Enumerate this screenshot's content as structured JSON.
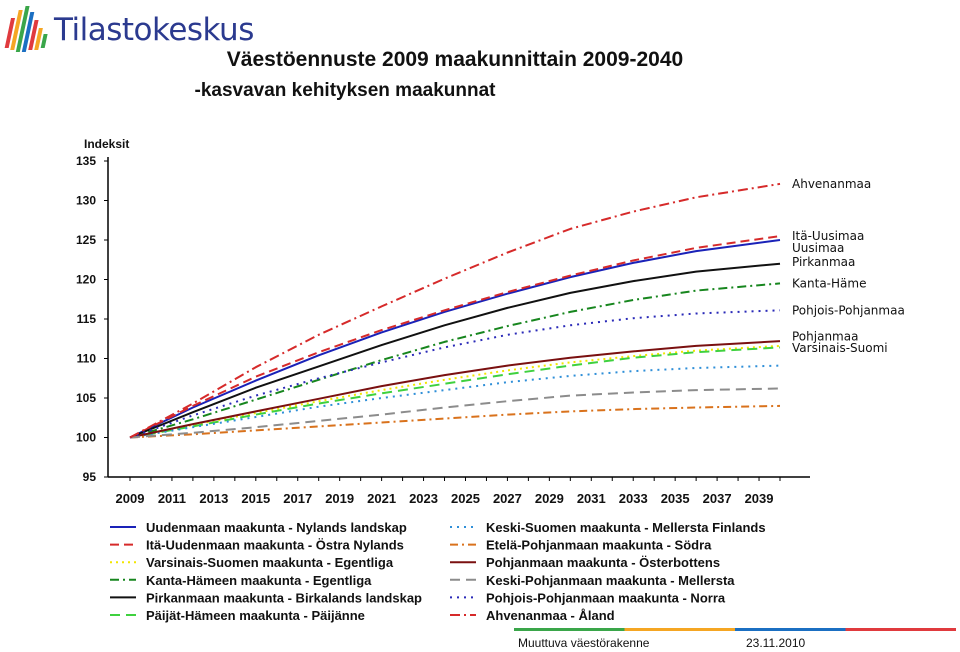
{
  "logo": {
    "brand": "Tilastokeskus",
    "colors": [
      "#e03a3e",
      "#f5a623",
      "#3aa64a",
      "#1b6fc2"
    ]
  },
  "title": "Väestöennuste 2009 maakunnittain 2009-2040",
  "subtitle": "-kasvavan kehityksen maakunnat",
  "footer": {
    "left": "Muuttuva väestörakenne",
    "right": "23.11.2010",
    "stripe_colors": [
      "#3aa64a",
      "#f5a623",
      "#1b6fc2",
      "#e03a3e"
    ]
  },
  "chart_data": {
    "type": "line",
    "ylabel": "Indeksit",
    "xlabel": "",
    "ylim": [
      95,
      135
    ],
    "xlim": [
      2009,
      2040
    ],
    "yticks": [
      95,
      100,
      105,
      110,
      115,
      120,
      125,
      130,
      135
    ],
    "xticks": [
      2009,
      2011,
      2013,
      2015,
      2017,
      2019,
      2021,
      2023,
      2025,
      2027,
      2029,
      2031,
      2033,
      2035,
      2037,
      2039
    ],
    "grid": false,
    "legend_position": "bottom",
    "x": [
      2009,
      2012,
      2015,
      2018,
      2021,
      2024,
      2027,
      2030,
      2033,
      2036,
      2040
    ],
    "series": [
      {
        "name": "Uudenmaan maakunta - Nylands landskap",
        "color": "#1a22b8",
        "dash": "",
        "width": 2,
        "values": [
          100,
          103.8,
          107.2,
          110.4,
          113.3,
          115.9,
          118.2,
          120.3,
          122.1,
          123.6,
          125.0
        ]
      },
      {
        "name": "Itä-Uudenmaan maakunta - Östra Nylands",
        "color": "#d62a2a",
        "dash": "9,5",
        "width": 2,
        "values": [
          100,
          104.0,
          107.7,
          110.8,
          113.6,
          116.1,
          118.4,
          120.5,
          122.4,
          124.0,
          125.5
        ]
      },
      {
        "name": "Varsinais-Suomen maakunta - Egentliga",
        "color": "#f2e600",
        "dash": "2,4",
        "width": 2,
        "values": [
          100,
          101.6,
          103.1,
          104.6,
          106.0,
          107.3,
          108.5,
          109.5,
          110.3,
          111.0,
          111.6
        ]
      },
      {
        "name": "Kanta-Hämeen maakunta - Egentliga",
        "color": "#17861e",
        "dash": "9,4,2,4",
        "width": 2,
        "values": [
          100,
          102.3,
          104.8,
          107.3,
          109.8,
          112.1,
          114.1,
          115.9,
          117.4,
          118.6,
          119.5
        ]
      },
      {
        "name": "Pirkanmaan maakunta - Birkalands landskap",
        "color": "#111111",
        "dash": "",
        "width": 2,
        "values": [
          100,
          103.2,
          106.3,
          109.0,
          111.7,
          114.2,
          116.4,
          118.3,
          119.8,
          121.0,
          122.0
        ]
      },
      {
        "name": "Päijät-Hämeen maakunta - Päijänne",
        "color": "#3fd13f",
        "dash": "10,6",
        "width": 2,
        "values": [
          100,
          101.4,
          102.9,
          104.3,
          105.6,
          106.8,
          108.0,
          109.1,
          110.1,
          110.8,
          111.4
        ]
      },
      {
        "name": "Keski-Suomen maakunta - Mellersta Finlands",
        "color": "#2f8fd8",
        "dash": "2,5",
        "width": 2,
        "values": [
          100,
          101.3,
          102.6,
          103.9,
          105.0,
          106.0,
          107.0,
          107.8,
          108.4,
          108.8,
          109.1
        ]
      },
      {
        "name": "Etelä-Pohjanmaan maakunta - Södra",
        "color": "#d9721c",
        "dash": "8,4,2,4",
        "width": 2,
        "values": [
          100,
          100.4,
          100.9,
          101.4,
          101.9,
          102.4,
          102.9,
          103.3,
          103.6,
          103.8,
          104.0
        ]
      },
      {
        "name": "Pohjanmaan maakunta - Österbottens",
        "color": "#7a1010",
        "dash": "",
        "width": 2,
        "values": [
          100,
          101.7,
          103.3,
          104.9,
          106.5,
          107.9,
          109.1,
          110.1,
          110.9,
          111.6,
          112.2
        ]
      },
      {
        "name": "Keski-Pohjanmaan maakunta - Mellersta",
        "color": "#8c8c8c",
        "dash": "10,6",
        "width": 2,
        "values": [
          100,
          100.6,
          101.3,
          102.1,
          102.9,
          103.8,
          104.6,
          105.3,
          105.7,
          106.0,
          106.2
        ]
      },
      {
        "name": "Pohjois-Pohjanmaan maakunta - Norra",
        "color": "#2a2ab8",
        "dash": "2,5",
        "width": 2,
        "values": [
          100,
          102.8,
          105.3,
          107.5,
          109.5,
          111.4,
          113.0,
          114.2,
          115.1,
          115.7,
          116.1
        ]
      },
      {
        "name": "Ahvenanmaa - Åland",
        "color": "#d62a2a",
        "dash": "10,4,2,4",
        "width": 2,
        "values": [
          100,
          104.3,
          108.9,
          113.0,
          116.6,
          120.1,
          123.4,
          126.4,
          128.6,
          130.4,
          132.1
        ]
      }
    ],
    "end_labels": [
      {
        "text": "Ahvenanmaa",
        "y": 132.1
      },
      {
        "text": "Itä-Uusimaa",
        "y": 125.5
      },
      {
        "text": "Uusimaa",
        "y": 124.0
      },
      {
        "text": "Pirkanmaa",
        "y": 122.2
      },
      {
        "text": "Kanta-Häme",
        "y": 119.5
      },
      {
        "text": "Pohjois-Pohjanmaa",
        "y": 116.1
      },
      {
        "text": "Pohjanmaa",
        "y": 112.8
      },
      {
        "text": "Varsinais-Suomi",
        "y": 111.3
      }
    ],
    "legend_columns": [
      [
        0,
        1,
        2,
        3,
        4,
        5
      ],
      [
        6,
        7,
        8,
        9,
        10,
        11
      ]
    ]
  }
}
